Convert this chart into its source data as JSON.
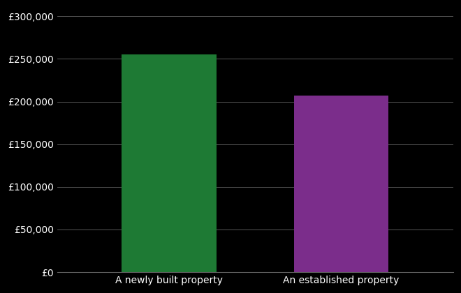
{
  "categories": [
    "A newly built property",
    "An established property"
  ],
  "values": [
    255000,
    207000
  ],
  "bar_colors": [
    "#1e7a34",
    "#7b2d8b"
  ],
  "background_color": "#000000",
  "text_color": "#ffffff",
  "grid_color": "#666666",
  "ylim": [
    0,
    310000
  ],
  "yticks": [
    0,
    50000,
    100000,
    150000,
    200000,
    250000,
    300000
  ],
  "bar_width": 0.55,
  "tick_fontsize": 10,
  "label_fontsize": 10
}
